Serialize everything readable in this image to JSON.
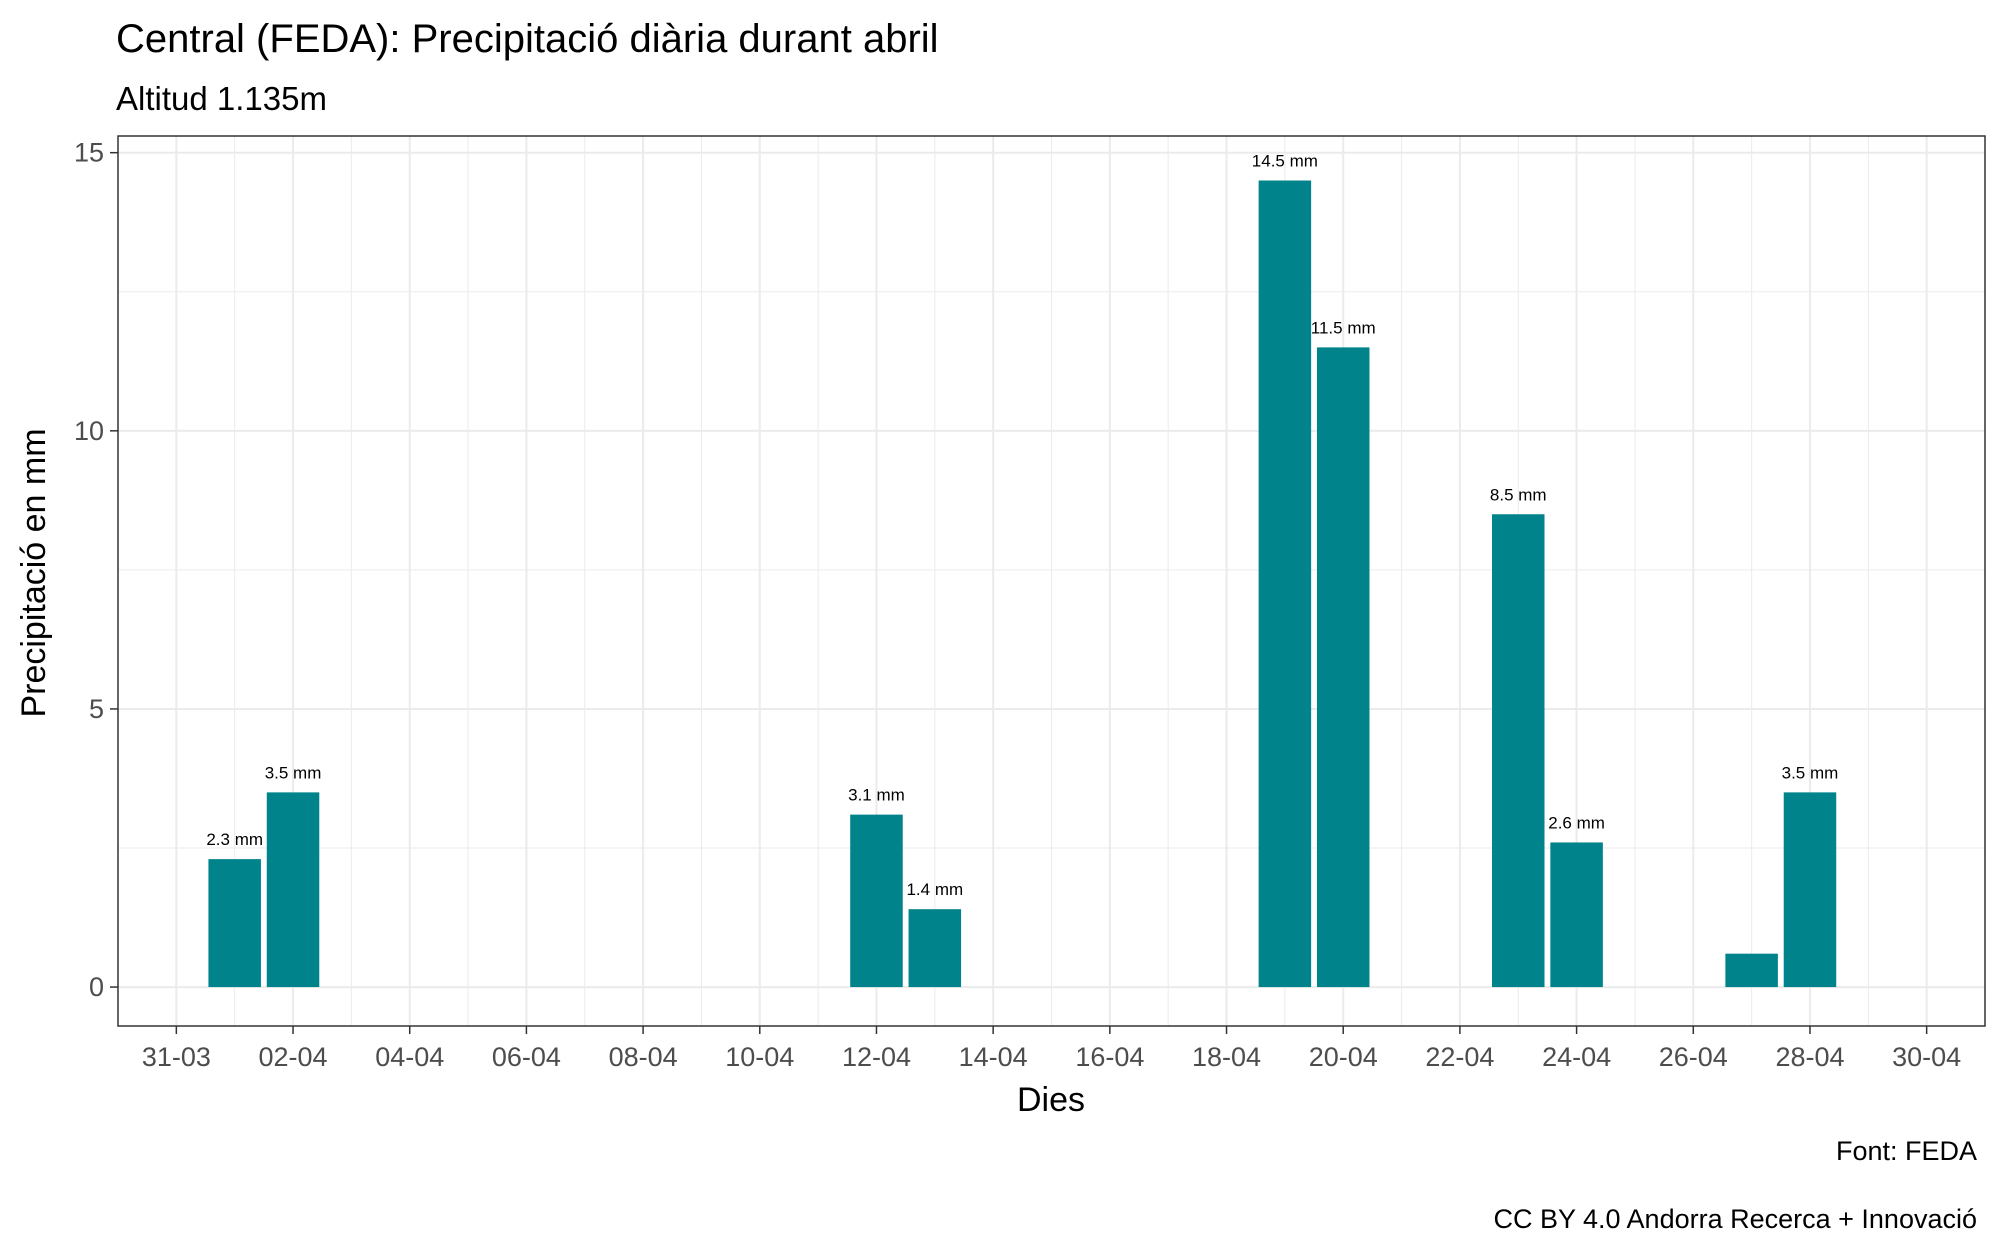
{
  "chart_data": {
    "type": "bar",
    "title": "Central (FEDA): Precipitació diària durant abril",
    "subtitle": "Altitud 1.135m",
    "xlabel": "Dies",
    "ylabel": "Precipitació en mm",
    "caption_lines": [
      "Font: FEDA",
      "CC BY 4.0 Andorra Recerca + Innovació"
    ],
    "ylim": [
      -0.7,
      15.3
    ],
    "y_ticks": [
      0,
      5,
      10,
      15
    ],
    "x_range": [
      "2023-03-30",
      "2023-05-01"
    ],
    "x_ticks": [
      {
        "date": "2023-03-31",
        "label": "31-03"
      },
      {
        "date": "2023-04-02",
        "label": "02-04"
      },
      {
        "date": "2023-04-04",
        "label": "04-04"
      },
      {
        "date": "2023-04-06",
        "label": "06-04"
      },
      {
        "date": "2023-04-08",
        "label": "08-04"
      },
      {
        "date": "2023-04-10",
        "label": "10-04"
      },
      {
        "date": "2023-04-12",
        "label": "12-04"
      },
      {
        "date": "2023-04-14",
        "label": "14-04"
      },
      {
        "date": "2023-04-16",
        "label": "16-04"
      },
      {
        "date": "2023-04-18",
        "label": "18-04"
      },
      {
        "date": "2023-04-20",
        "label": "20-04"
      },
      {
        "date": "2023-04-22",
        "label": "22-04"
      },
      {
        "date": "2023-04-24",
        "label": "24-04"
      },
      {
        "date": "2023-04-26",
        "label": "26-04"
      },
      {
        "date": "2023-04-28",
        "label": "28-04"
      },
      {
        "date": "2023-04-30",
        "label": "30-04"
      }
    ],
    "bars": [
      {
        "date": "2023-04-01",
        "value": 2.3,
        "label": "2.3 mm"
      },
      {
        "date": "2023-04-02",
        "value": 3.5,
        "label": "3.5 mm"
      },
      {
        "date": "2023-04-12",
        "value": 3.1,
        "label": "3.1 mm"
      },
      {
        "date": "2023-04-13",
        "value": 1.4,
        "label": "1.4 mm"
      },
      {
        "date": "2023-04-19",
        "value": 14.5,
        "label": "14.5 mm"
      },
      {
        "date": "2023-04-20",
        "value": 11.5,
        "label": "11.5 mm"
      },
      {
        "date": "2023-04-23",
        "value": 8.5,
        "label": "8.5 mm"
      },
      {
        "date": "2023-04-24",
        "value": 2.6,
        "label": "2.6 mm"
      },
      {
        "date": "2023-04-27",
        "value": 0.6,
        "label": ""
      },
      {
        "date": "2023-04-28",
        "value": 3.5,
        "label": "3.5 mm"
      }
    ],
    "grid": true,
    "legend": "none",
    "colors": {
      "bar": "#00838A",
      "grid": "#EBEBEB",
      "axis": "#333333"
    }
  }
}
